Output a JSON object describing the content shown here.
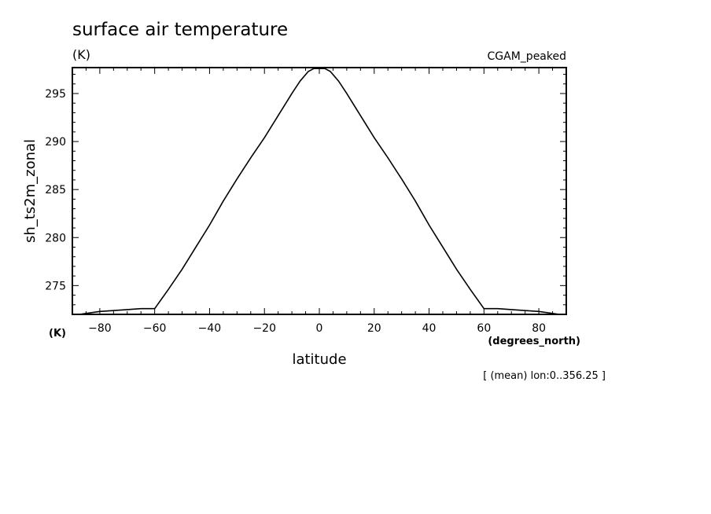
{
  "chart_data": {
    "type": "line",
    "title": "surface air temperature",
    "units": "(K)",
    "dataset": "CGAM_peaked",
    "xlabel": "latitude",
    "ylabel": "sh_ts2m_zonal",
    "x_units": "(degrees_north)",
    "y_units": "(K)",
    "note": "[ (mean) lon:0..356.25 ]",
    "xlim": [
      -90,
      90
    ],
    "ylim": [
      272,
      297.7
    ],
    "x_ticks": [
      -80,
      -60,
      -40,
      -20,
      0,
      20,
      40,
      60,
      80
    ],
    "x_tick_labels": [
      "−80",
      "−60",
      "−40",
      "−20",
      "0",
      "20",
      "40",
      "60",
      "80"
    ],
    "y_ticks": [
      275,
      280,
      285,
      290,
      295
    ],
    "y_tick_labels": [
      "275",
      "280",
      "285",
      "290",
      "295"
    ],
    "grid": false,
    "series": [
      {
        "x": [
          -87.5,
          -80,
          -70,
          -65,
          -62,
          -60,
          -55,
          -50,
          -45,
          -40,
          -35,
          -30,
          -25,
          -20,
          -15,
          -10,
          -7,
          -4,
          -2,
          0,
          2,
          4,
          7,
          10,
          15,
          20,
          25,
          30,
          35,
          40,
          45,
          50,
          55,
          60,
          62,
          65,
          70,
          80,
          87.5
        ],
        "y": [
          272.0,
          272.3,
          272.5,
          272.6,
          272.6,
          272.6,
          274.6,
          276.7,
          279.0,
          281.3,
          283.8,
          286.1,
          288.3,
          290.4,
          292.7,
          295.0,
          296.3,
          297.3,
          297.6,
          297.6,
          297.6,
          297.3,
          296.3,
          295.0,
          292.7,
          290.4,
          288.3,
          286.1,
          283.8,
          281.3,
          279.0,
          276.7,
          274.6,
          272.6,
          272.6,
          272.6,
          272.5,
          272.3,
          272.0
        ]
      }
    ]
  }
}
